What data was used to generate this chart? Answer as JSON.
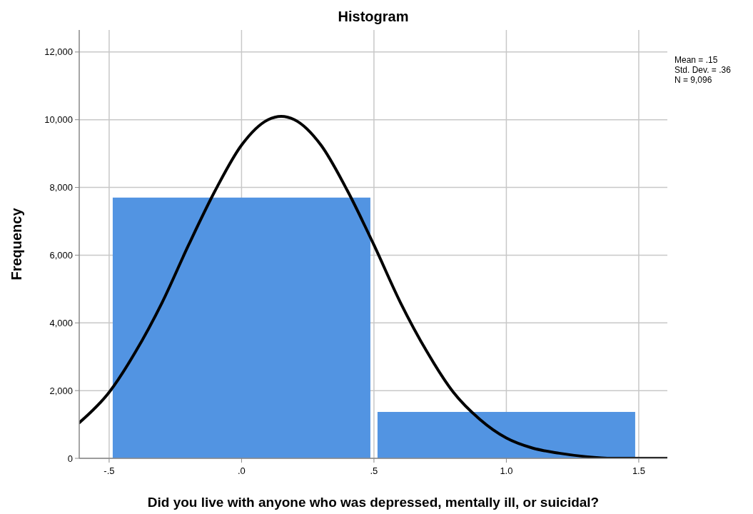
{
  "chart_data": {
    "type": "histogram",
    "title": "Histogram",
    "xlabel": "Did you live with anyone who was depressed, mentally ill, or suicidal?",
    "ylabel": "Frequency",
    "annotations": [
      "Mean = .15",
      "Std. Dev. = .36",
      "N = 9,096"
    ],
    "bins": [
      -0.5,
      0.5,
      1.5
    ],
    "series": [
      {
        "color": "#5294e2",
        "values": [
          7700,
          1370
        ]
      },
      {
        "type": "line",
        "color": "#000000",
        "x": [
          -0.613,
          -0.5,
          -0.4,
          -0.3,
          -0.2,
          -0.1,
          0,
          0.1,
          0.15,
          0.2,
          0.3,
          0.4,
          0.5,
          0.6,
          0.7,
          0.8,
          0.9,
          1.0,
          1.1,
          1.2,
          1.3,
          1.4,
          1.5,
          1.608
        ],
        "values": [
          1050,
          1950,
          3150,
          4600,
          6300,
          7900,
          9250,
          10000,
          10100,
          10000,
          9250,
          7900,
          6300,
          4600,
          3150,
          1950,
          1150,
          600,
          300,
          150,
          50,
          0,
          0,
          0
        ]
      }
    ],
    "xlim": [
      -0.613,
      1.608
    ],
    "ylim": [
      0,
      12650
    ],
    "xticks": [
      {
        "value": -0.5,
        "label": "-.5"
      },
      {
        "value": 0,
        "label": ".0"
      },
      {
        "value": 0.5,
        "label": ".5"
      },
      {
        "value": 1,
        "label": "1.0"
      },
      {
        "value": 1.5,
        "label": "1.5"
      }
    ],
    "yticks": [
      0,
      {
        "value": 2000,
        "label": "2,000"
      },
      {
        "value": 4000,
        "label": "4,000"
      },
      {
        "value": 6000,
        "label": "6,000"
      },
      {
        "value": 8000,
        "label": "8,000"
      },
      {
        "value": 10000,
        "label": "10,000"
      },
      {
        "value": 12000,
        "label": "12,000"
      }
    ],
    "grid": true
  }
}
